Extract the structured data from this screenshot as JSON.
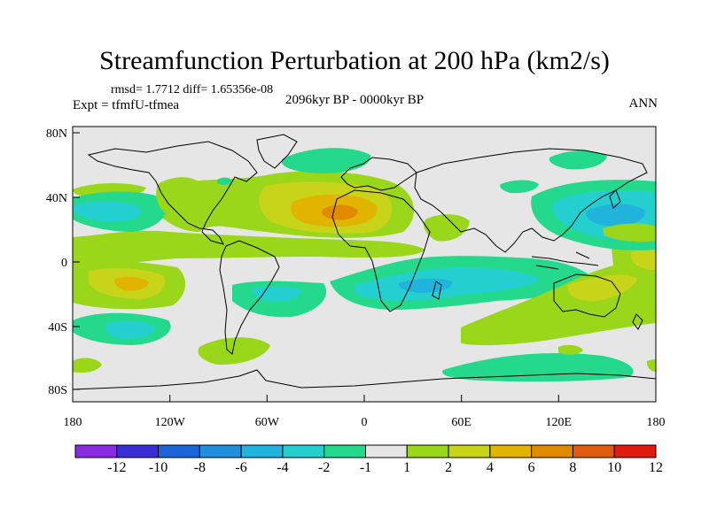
{
  "title": "Streamfunction Perturbation at 200 hPa (km2/s)",
  "stats": "rmsd= 1.7712 diff= 1.65356e-08",
  "experiment": "Expt = tfmfU-tfmea",
  "period": "2096kyr BP - 0000kyr BP",
  "season": "ANN",
  "lat_labels": [
    "80N",
    "40N",
    "0",
    "40S",
    "80S"
  ],
  "lon_labels": [
    "180",
    "120W",
    "60W",
    "0",
    "60E",
    "120E",
    "180"
  ],
  "colorbar": {
    "labels": [
      "-12",
      "-10",
      "-8",
      "-6",
      "-4",
      "-2",
      "-1",
      "1",
      "2",
      "4",
      "6",
      "8",
      "10",
      "12"
    ],
    "colors": [
      "#8a2be2",
      "#3a2fd6",
      "#1c64d8",
      "#2090dc",
      "#20b4dc",
      "#24cfd0",
      "#24d98c",
      "#e6e6e6",
      "#9ad61a",
      "#c8d41a",
      "#e0b400",
      "#e08a00",
      "#e05a10",
      "#e01c10"
    ]
  },
  "colors": {
    "neutral": "#e6e6e6",
    "pos2": "#9ad61a",
    "pos4": "#c8d41a",
    "pos6": "#e0b400",
    "pos8": "#e08a00",
    "neg1": "#24d98c",
    "neg2": "#24cfd0",
    "neg4": "#20b4dc"
  }
}
